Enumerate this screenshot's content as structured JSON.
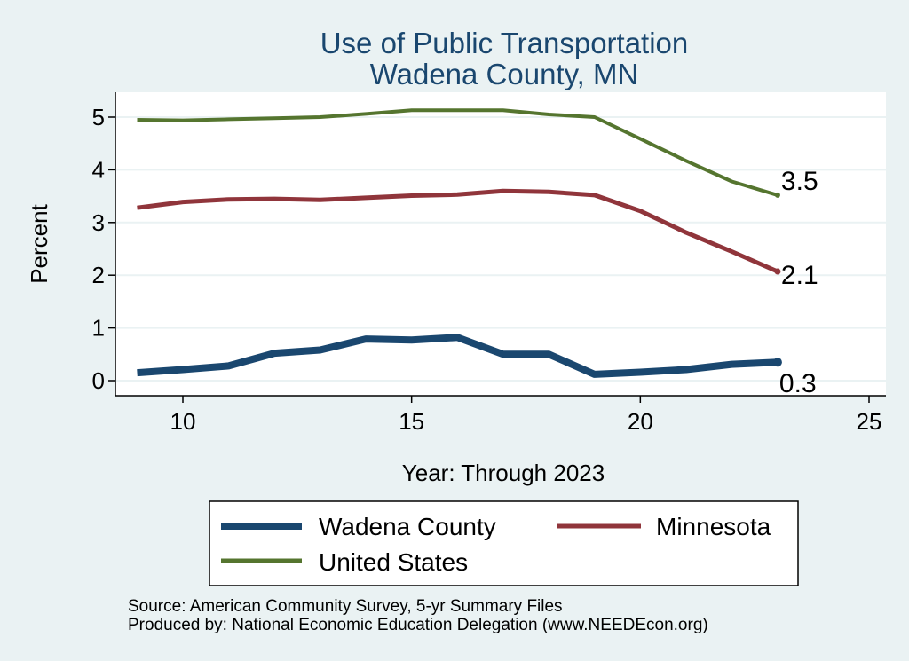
{
  "chart_data": {
    "type": "line",
    "title": "Use of Public Transportation",
    "subtitle": "Wadena County, MN",
    "xlabel": "Year: Through 2023",
    "ylabel": "Percent",
    "xlim": [
      9,
      25
    ],
    "ylim": [
      0,
      5
    ],
    "xticks": [
      10,
      15,
      20,
      25
    ],
    "yticks": [
      0,
      1,
      2,
      3,
      4,
      5
    ],
    "grid": "horizontal",
    "legend_position": "bottom",
    "x": [
      9,
      10,
      11,
      12,
      13,
      14,
      15,
      16,
      17,
      18,
      19,
      20,
      21,
      22,
      23
    ],
    "series": [
      {
        "name": "Wadena County",
        "color": "#1a476f",
        "values": [
          0.15,
          0.21,
          0.28,
          0.52,
          0.58,
          0.79,
          0.77,
          0.82,
          0.5,
          0.5,
          0.12,
          0.16,
          0.21,
          0.31,
          0.35
        ],
        "end_label": "0.3"
      },
      {
        "name": "Minnesota",
        "color": "#90353b",
        "values": [
          3.28,
          3.39,
          3.44,
          3.45,
          3.43,
          3.47,
          3.51,
          3.53,
          3.6,
          3.58,
          3.52,
          3.22,
          2.81,
          2.45,
          2.07
        ],
        "end_label": "2.1"
      },
      {
        "name": "United States",
        "color": "#55752f",
        "values": [
          4.95,
          4.94,
          4.96,
          4.98,
          5.0,
          5.06,
          5.13,
          5.13,
          5.13,
          5.05,
          5.0,
          4.59,
          4.17,
          3.78,
          3.52
        ],
        "end_label": "3.5"
      }
    ]
  },
  "notes": {
    "source": "Source: American Community Survey, 5-yr Summary Files",
    "produced": "Produced by: National Economic Education Delegation (www.NEEDEcon.org)"
  }
}
